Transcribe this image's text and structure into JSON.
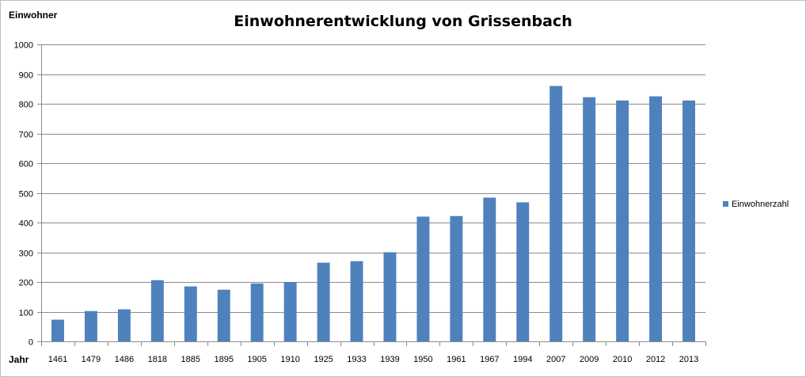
{
  "chart_data": {
    "type": "bar",
    "title": "Einwohnerentwicklung von Grissenbach",
    "ylabel": "Einwohner",
    "xlabel": "Jahr",
    "ylim": [
      0,
      1000
    ],
    "yticks": [
      0,
      100,
      200,
      300,
      400,
      500,
      600,
      700,
      800,
      900,
      1000
    ],
    "grid": true,
    "legend_position": "right",
    "categories": [
      "1461",
      "1479",
      "1486",
      "1818",
      "1885",
      "1895",
      "1905",
      "1910",
      "1925",
      "1933",
      "1939",
      "1950",
      "1961",
      "1967",
      "1994",
      "2007",
      "2009",
      "2010",
      "2012",
      "2013"
    ],
    "series": [
      {
        "name": "Einwohnerzahl",
        "color": "#4f81bd",
        "values": [
          73,
          102,
          108,
          206,
          185,
          174,
          195,
          200,
          265,
          270,
          300,
          420,
          422,
          484,
          468,
          860,
          822,
          811,
          825,
          811
        ]
      }
    ]
  }
}
